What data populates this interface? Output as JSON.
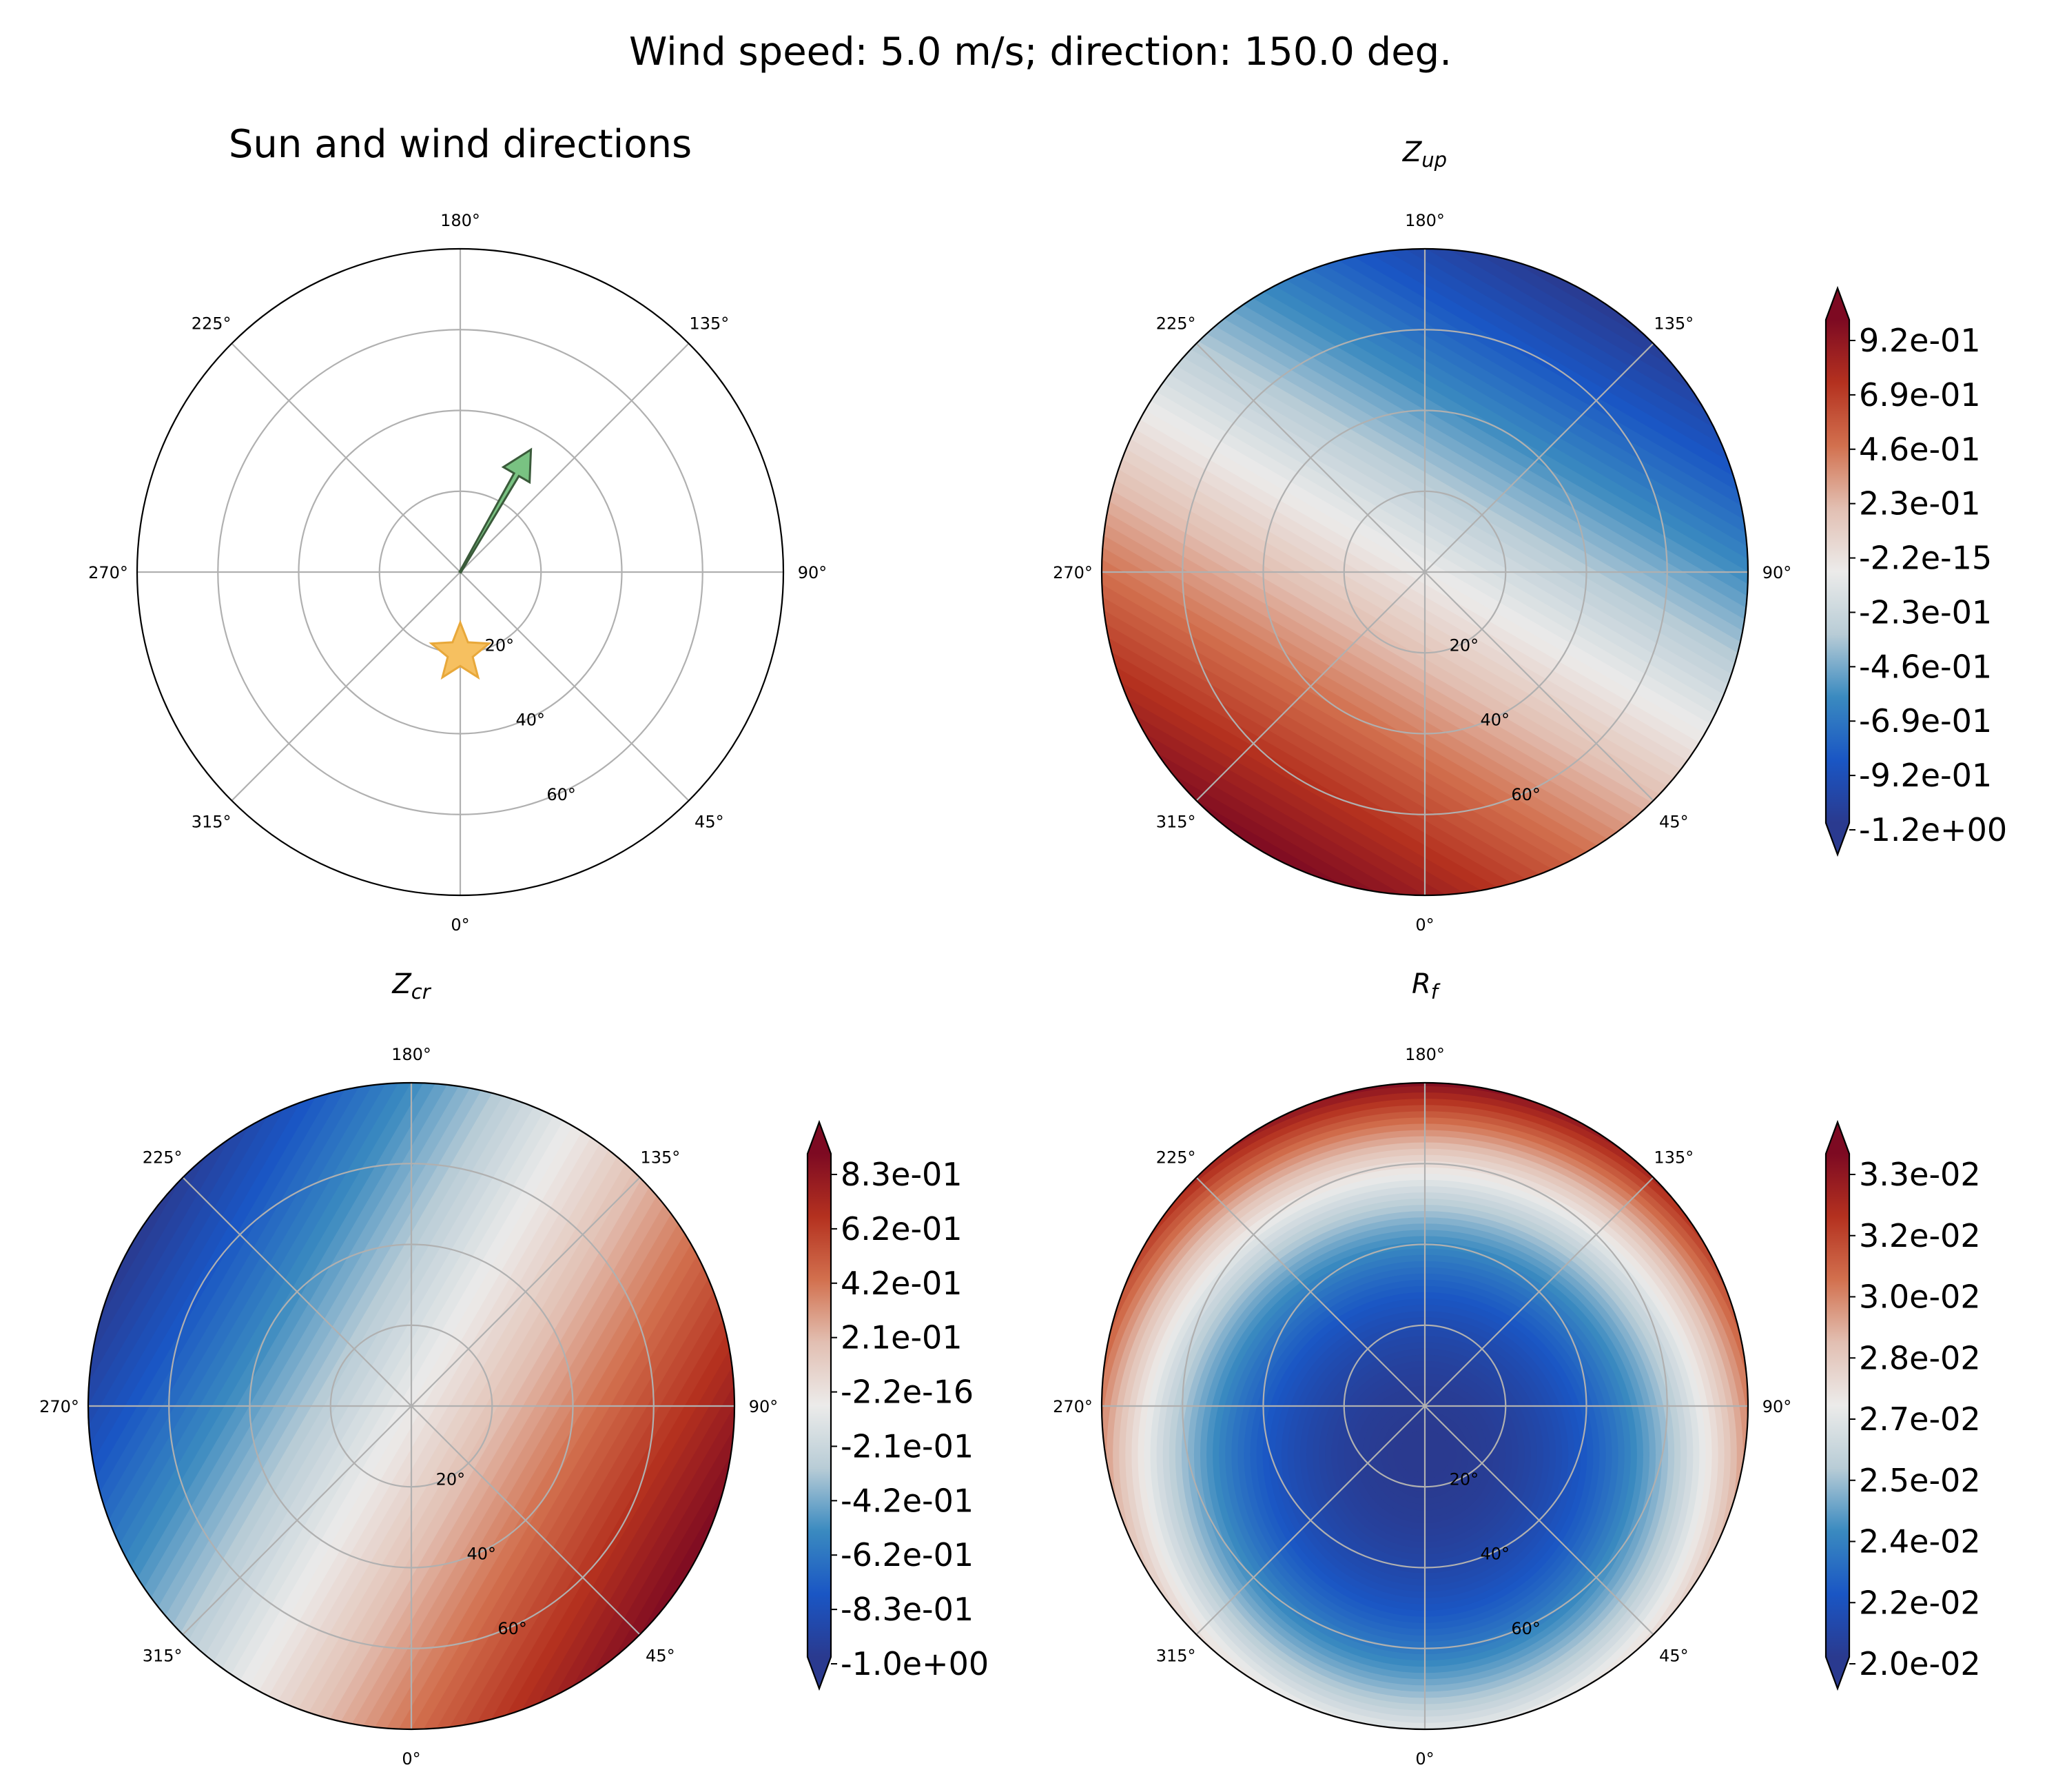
{
  "figure": {
    "suptitle": "Wind speed: 5.0 m/s; direction: 150.0 deg.",
    "colormap": [
      "#2a3a8f",
      "#1a56c4",
      "#3a8ac0",
      "#b8ccd6",
      "#ecebea",
      "#e2bfb2",
      "#d2704e",
      "#b4311f",
      "#7d0a22"
    ]
  },
  "chart_data": [
    {
      "type": "polar",
      "id": "sun-wind",
      "title": "Sun and wind directions",
      "theta_ticks": [
        "180°",
        "135°",
        "90°",
        "45°",
        "0°",
        "315°",
        "270°",
        "225°"
      ],
      "r_ticks": [
        "20°",
        "40°",
        "60°"
      ],
      "rmax": 80,
      "wind_arrow": {
        "direction_deg": 150,
        "length": 35,
        "color": "#79c282"
      },
      "sun": {
        "azimuth_deg": 0,
        "zenith_deg": 20,
        "color": "#f6c060"
      }
    },
    {
      "type": "polar-contour",
      "id": "z-up",
      "title_main": "Z",
      "title_sub": "up",
      "theta_ticks": [
        "180°",
        "135°",
        "90°",
        "45°",
        "0°",
        "315°",
        "270°",
        "225°"
      ],
      "r_ticks": [
        "20°",
        "40°",
        "60°"
      ],
      "field": {
        "kind": "linear",
        "grad_direction_deg": 330,
        "range": [
          -1.2,
          1.15
        ]
      },
      "colorbar_ticks": [
        "9.2e-01",
        "6.9e-01",
        "4.6e-01",
        "2.3e-01",
        "-2.2e-15",
        "-2.3e-01",
        "-4.6e-01",
        "-6.9e-01",
        "-9.2e-01",
        "-1.2e+00"
      ]
    },
    {
      "type": "polar-contour",
      "id": "z-cr",
      "title_main": "Z",
      "title_sub": "cr",
      "theta_ticks": [
        "180°",
        "135°",
        "90°",
        "45°",
        "0°",
        "315°",
        "270°",
        "225°"
      ],
      "r_ticks": [
        "20°",
        "40°",
        "60°"
      ],
      "field": {
        "kind": "linear",
        "grad_direction_deg": 60,
        "range": [
          -1.0,
          1.04
        ]
      },
      "colorbar_ticks": [
        "8.3e-01",
        "6.2e-01",
        "4.2e-01",
        "2.1e-01",
        "-2.2e-16",
        "-2.1e-01",
        "-4.2e-01",
        "-6.2e-01",
        "-8.3e-01",
        "-1.0e+00"
      ]
    },
    {
      "type": "polar-contour",
      "id": "r-f",
      "title_main": "R",
      "title_sub": "f",
      "theta_ticks": [
        "180°",
        "135°",
        "90°",
        "45°",
        "0°",
        "315°",
        "270°",
        "225°"
      ],
      "r_ticks": [
        "20°",
        "40°",
        "60°"
      ],
      "field": {
        "kind": "radial-offset",
        "offset_direction_deg": 0,
        "offset": 0.15,
        "range": [
          0.02,
          0.0335
        ]
      },
      "colorbar_ticks": [
        "3.3e-02",
        "3.2e-02",
        "3.0e-02",
        "2.8e-02",
        "2.7e-02",
        "2.5e-02",
        "2.4e-02",
        "2.2e-02",
        "2.0e-02"
      ]
    }
  ]
}
